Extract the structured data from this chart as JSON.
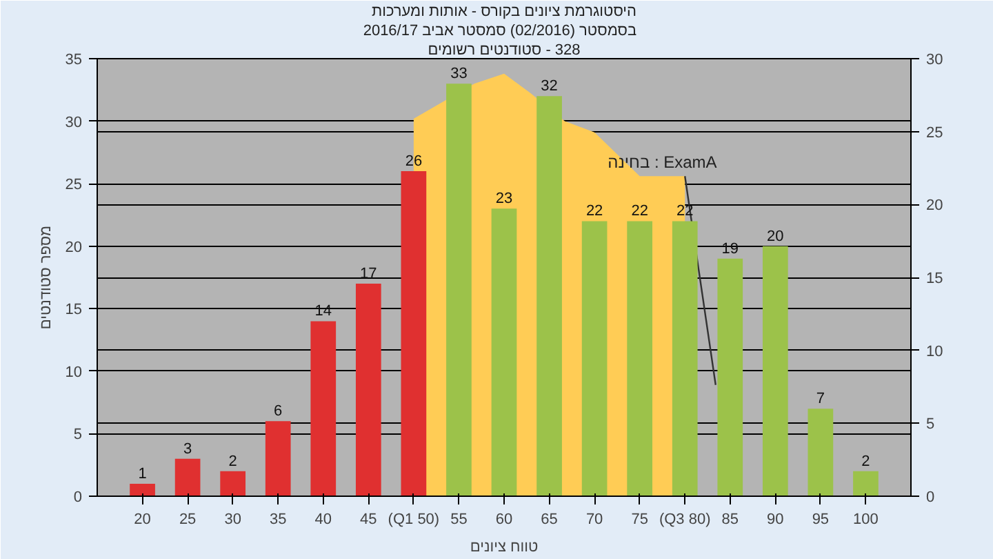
{
  "chart_data": {
    "type": "bar",
    "title": "היסטוגרמת ציונים בקורס - אותות ומערכות",
    "subtitle": "בסמסטר  (02/2016)  סמסטר אביב 2016/17",
    "annotations": [
      "סטודנטים רשומים -‎ 328"
    ],
    "xlabel": "טווח ציונים",
    "ylabel": "מספר סטודנטים",
    "x": [
      20,
      25,
      30,
      35,
      40,
      45,
      50,
      55,
      60,
      65,
      70,
      75,
      80,
      85,
      90,
      95,
      100
    ],
    "xlim": [
      15,
      105
    ],
    "xticks": [
      20,
      25,
      30,
      35,
      40,
      45,
      {
        "value": 50,
        "label": "(Q1 50)"
      },
      55,
      60,
      65,
      70,
      75,
      {
        "value": 80,
        "label": "(Q3 80)"
      },
      85,
      90,
      95,
      100
    ],
    "ylim": [
      0,
      35
    ],
    "yticks": [
      0,
      5,
      10,
      15,
      20,
      25,
      30,
      35
    ],
    "y2lim": [
      0,
      30
    ],
    "y2ticks": [
      0,
      5,
      10,
      15,
      20,
      25,
      30
    ],
    "grid": "y",
    "series": [
      {
        "type": "area",
        "name": "בחינה : ExamA",
        "color": "#ffcc55",
        "x": [
          50,
          56.7,
          60,
          63,
          66.7,
          70,
          75,
          80
        ],
        "values": [
          30.2,
          33.0,
          33.8,
          32.2,
          30.0,
          29.1,
          25.6,
          25.6
        ]
      },
      {
        "type": "line",
        "color": "#333333",
        "x": [
          80,
          83.4
        ],
        "values": [
          25.6,
          8.9
        ]
      },
      {
        "value_labels": [
          "1",
          "3",
          "2",
          "6",
          "14",
          "17",
          "26",
          "33",
          "23",
          "32",
          "22",
          "22",
          "22",
          "19",
          "20",
          "7",
          "2"
        ],
        "colors": [
          "#e03030",
          "#e03030",
          "#e03030",
          "#e03030",
          "#e03030",
          "#e03030",
          "#e03030",
          "#9cc24a",
          "#9cc24a",
          "#9cc24a",
          "#9cc24a",
          "#9cc24a",
          "#9cc24a",
          "#9cc24a",
          "#9cc24a",
          "#9cc24a",
          "#9cc24a"
        ],
        "values": [
          1,
          3,
          2,
          6,
          14,
          17,
          26,
          33,
          23,
          32,
          22,
          22,
          22,
          19,
          20,
          7,
          2
        ]
      }
    ]
  }
}
